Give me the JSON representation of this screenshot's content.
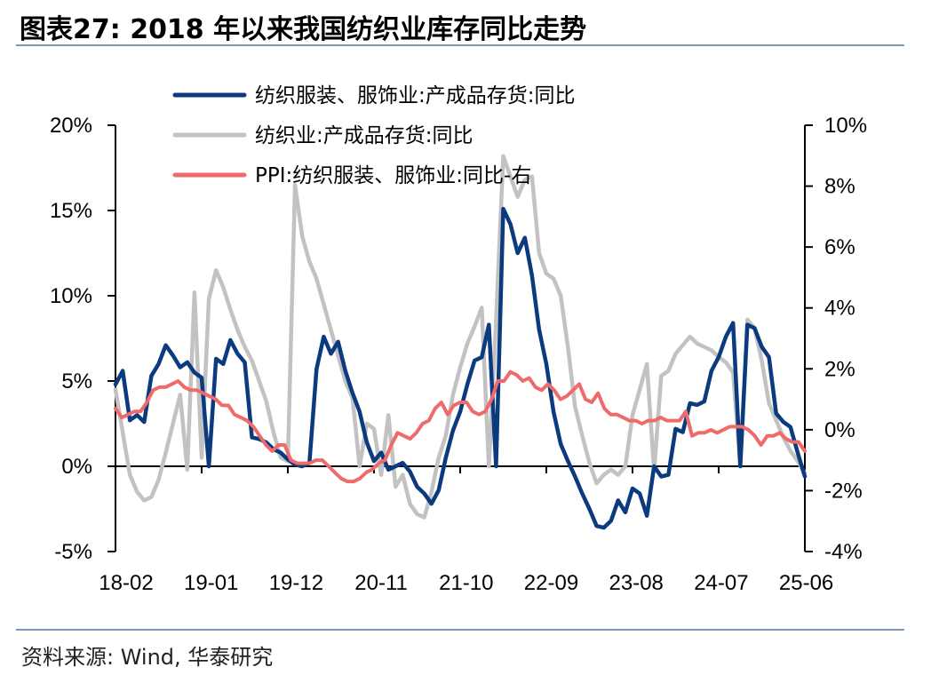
{
  "title": "图表27:  2018 年以来我国纺织业库存同比走势",
  "source": "资料来源:  Wind, 华泰研究",
  "colors": {
    "navy": "#0b3a7e",
    "gray": "#c2c2c2",
    "red": "#ef6a6a",
    "rule": "#7f97b8"
  },
  "chart_data": {
    "type": "line",
    "x_labels": [
      "18-02",
      "19-01",
      "19-12",
      "20-11",
      "21-10",
      "22-09",
      "23-08",
      "24-07",
      "25-06"
    ],
    "y_left": {
      "min": -5,
      "max": 20,
      "ticks": [
        "-5%",
        "0%",
        "5%",
        "10%",
        "15%",
        "20%"
      ]
    },
    "y_right": {
      "min": -4,
      "max": 10,
      "ticks": [
        "-4%",
        "-2%",
        "0%",
        "2%",
        "4%",
        "6%",
        "8%",
        "10%"
      ]
    },
    "legend": [
      "纺织服装、服饰业:产成品存货:同比",
      "纺织业:产成品存货:同比",
      "PPI:纺织服装、服饰业:同比-右"
    ],
    "series": [
      {
        "name": "纺织服装、服饰业:产成品存货:同比",
        "axis": "left",
        "values": [
          4.8,
          5.6,
          2.7,
          3.0,
          2.6,
          5.3,
          6.0,
          7.1,
          6.5,
          5.8,
          6.1,
          5.5,
          5.2,
          0.0,
          6.3,
          6.0,
          7.4,
          6.6,
          6.1,
          1.7,
          1.6,
          1.4,
          1.0,
          0.8,
          0.4,
          0.1,
          0.0,
          0.2,
          5.7,
          7.6,
          6.6,
          7.3,
          5.6,
          4.3,
          3.2,
          1.4,
          0.3,
          0.8,
          -0.2,
          0.0,
          0.2,
          -0.3,
          -1.2,
          -1.6,
          -2.2,
          -1.4,
          0.5,
          2.1,
          3.2,
          4.8,
          6.2,
          6.4,
          8.3,
          0.0,
          15.1,
          14.2,
          12.5,
          13.4,
          11.2,
          8.0,
          6.0,
          3.2,
          1.3,
          0.3,
          -0.6,
          -1.6,
          -2.5,
          -3.5,
          -3.6,
          -3.2,
          -2.0,
          -2.7,
          -1.3,
          -1.6,
          -2.9,
          0.0,
          -0.6,
          -0.5,
          2.2,
          2.0,
          3.7,
          3.6,
          3.8,
          5.6,
          6.4,
          7.6,
          8.4,
          0.0,
          8.3,
          8.1,
          7.0,
          6.4,
          3.1,
          2.6,
          2.3,
          0.8,
          -0.6
        ]
      },
      {
        "name": "纺织业:产成品存货:同比",
        "axis": "left",
        "values": [
          4.5,
          2.0,
          -0.5,
          -1.5,
          -2.0,
          -1.8,
          -0.8,
          0.8,
          2.5,
          4.2,
          -0.2,
          10.2,
          0.5,
          9.8,
          11.5,
          10.5,
          9.2,
          8.0,
          7.0,
          6.2,
          5.0,
          3.8,
          2.0,
          0.5,
          0.3,
          16.5,
          13.5,
          12.0,
          11.0,
          9.5,
          8.0,
          6.5,
          5.0,
          4.0,
          0.0,
          2.5,
          2.2,
          -0.5,
          3.0,
          -1.2,
          -0.5,
          -2.2,
          -2.8,
          -3.0,
          -1.5,
          0.5,
          1.8,
          4.2,
          5.8,
          7.2,
          8.2,
          9.3,
          0.0,
          8.5,
          18.2,
          17.0,
          15.8,
          16.8,
          17.0,
          12.5,
          11.3,
          11.0,
          10.0,
          7.0,
          3.5,
          1.8,
          0.2,
          -1.0,
          -0.5,
          -0.2,
          -0.5,
          0.0,
          3.0,
          4.5,
          6.0,
          -0.3,
          5.3,
          5.6,
          6.6,
          7.1,
          7.6,
          7.2,
          7.0,
          6.8,
          6.4,
          6.1,
          5.5,
          0.0,
          8.6,
          8.1,
          6.2,
          3.7,
          2.7,
          1.7,
          0.9,
          0.3,
          -0.4
        ]
      },
      {
        "name": "PPI:纺织服装、服饰业:同比-右",
        "axis": "right",
        "values": [
          0.7,
          0.4,
          0.5,
          0.6,
          0.6,
          0.9,
          1.3,
          1.4,
          1.4,
          1.5,
          1.6,
          1.4,
          1.3,
          1.3,
          1.2,
          1.1,
          1.0,
          0.8,
          0.8,
          0.5,
          0.4,
          0.3,
          0.1,
          -0.2,
          -0.5,
          -0.7,
          -0.5,
          -0.5,
          -1.0,
          -1.1,
          -1.1,
          -1.1,
          -1.0,
          -1.0,
          -1.2,
          -1.4,
          -1.6,
          -1.7,
          -1.7,
          -1.6,
          -1.4,
          -1.3,
          -1.1,
          -1.0,
          -0.5,
          -0.1,
          -0.2,
          -0.3,
          -0.1,
          0.2,
          0.3,
          0.7,
          0.9,
          0.5,
          0.8,
          0.9,
          0.9,
          0.6,
          0.5,
          0.6,
          1.0,
          1.6,
          1.6,
          1.9,
          1.8,
          1.6,
          1.7,
          1.4,
          1.3,
          1.5,
          1.3,
          1.0,
          1.1,
          1.3,
          1.5,
          1.0,
          0.9,
          1.2,
          0.7,
          0.5,
          0.5,
          0.4,
          0.3,
          0.3,
          0.2,
          0.3,
          0.3,
          0.4,
          0.3,
          0.3,
          0.3,
          0.6,
          -0.2,
          -0.1,
          -0.1,
          0.0,
          -0.1,
          0.0,
          0.1,
          0.1,
          0.1,
          0.0,
          -0.2,
          -0.5,
          -0.2,
          -0.2,
          -0.1,
          -0.3,
          -0.4,
          -0.4,
          -0.7
        ]
      }
    ]
  }
}
